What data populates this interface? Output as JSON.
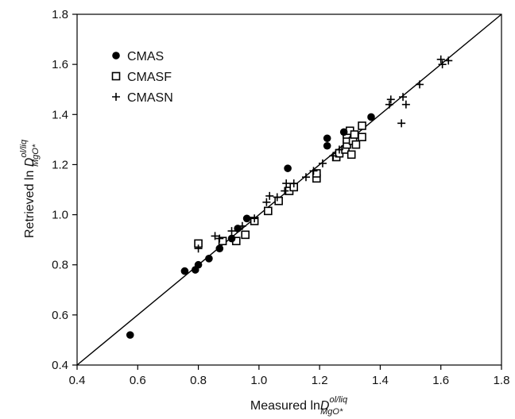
{
  "chart_data": {
    "type": "scatter",
    "title": "",
    "xlabel": {
      "prefix": "Measured ln",
      "D": "D",
      "sup": "ol/liq",
      "sub": "MgO*"
    },
    "ylabel": {
      "prefix": "Retrieved ln ",
      "D": "D",
      "sup": "ol/liq",
      "sub": "MgO*"
    },
    "xlim": [
      0.4,
      1.8
    ],
    "ylim": [
      0.4,
      1.8
    ],
    "xticks": [
      "0.4",
      "0.6",
      "0.8",
      "1.0",
      "1.2",
      "1.4",
      "1.6",
      "1.8"
    ],
    "yticks": [
      "0.4",
      "0.6",
      "0.8",
      "1.0",
      "1.2",
      "1.4",
      "1.6",
      "1.8"
    ],
    "grid": false,
    "legend": "top-left",
    "reference_line": {
      "from": [
        0.4,
        0.4
      ],
      "to": [
        1.8,
        1.8
      ],
      "label": ""
    },
    "series": [
      {
        "name": "CMAS",
        "marker": "filled-circle",
        "points": [
          [
            0.575,
            0.52
          ],
          [
            0.755,
            0.775
          ],
          [
            0.79,
            0.78
          ],
          [
            0.8,
            0.8
          ],
          [
            0.835,
            0.825
          ],
          [
            0.87,
            0.865
          ],
          [
            0.91,
            0.905
          ],
          [
            0.93,
            0.945
          ],
          [
            0.96,
            0.985
          ],
          [
            1.095,
            1.185
          ],
          [
            1.225,
            1.275
          ],
          [
            1.225,
            1.305
          ],
          [
            1.28,
            1.33
          ],
          [
            1.37,
            1.39
          ]
        ]
      },
      {
        "name": "CMASF",
        "marker": "open-square",
        "points": [
          [
            0.8,
            0.885
          ],
          [
            0.88,
            0.895
          ],
          [
            0.925,
            0.895
          ],
          [
            0.955,
            0.92
          ],
          [
            0.985,
            0.975
          ],
          [
            1.03,
            1.015
          ],
          [
            1.065,
            1.055
          ],
          [
            1.1,
            1.095
          ],
          [
            1.115,
            1.11
          ],
          [
            1.19,
            1.145
          ],
          [
            1.19,
            1.165
          ],
          [
            1.255,
            1.23
          ],
          [
            1.265,
            1.245
          ],
          [
            1.285,
            1.26
          ],
          [
            1.29,
            1.28
          ],
          [
            1.29,
            1.3
          ],
          [
            1.29,
            1.32
          ],
          [
            1.3,
            1.335
          ],
          [
            1.305,
            1.24
          ],
          [
            1.31,
            1.295
          ],
          [
            1.315,
            1.32
          ],
          [
            1.32,
            1.28
          ],
          [
            1.34,
            1.31
          ],
          [
            1.34,
            1.355
          ]
        ]
      },
      {
        "name": "CMASN",
        "marker": "plus",
        "points": [
          [
            0.8,
            0.865
          ],
          [
            0.855,
            0.915
          ],
          [
            0.87,
            0.905
          ],
          [
            0.91,
            0.935
          ],
          [
            0.945,
            0.955
          ],
          [
            0.985,
            0.985
          ],
          [
            1.025,
            1.05
          ],
          [
            1.035,
            1.075
          ],
          [
            1.06,
            1.07
          ],
          [
            1.085,
            1.095
          ],
          [
            1.09,
            1.125
          ],
          [
            1.115,
            1.125
          ],
          [
            1.155,
            1.15
          ],
          [
            1.18,
            1.175
          ],
          [
            1.21,
            1.205
          ],
          [
            1.245,
            1.235
          ],
          [
            1.265,
            1.26
          ],
          [
            1.43,
            1.44
          ],
          [
            1.435,
            1.46
          ],
          [
            1.47,
            1.365
          ],
          [
            1.475,
            1.47
          ],
          [
            1.485,
            1.44
          ],
          [
            1.53,
            1.52
          ],
          [
            1.6,
            1.62
          ],
          [
            1.605,
            1.6
          ],
          [
            1.625,
            1.615
          ]
        ]
      }
    ]
  }
}
